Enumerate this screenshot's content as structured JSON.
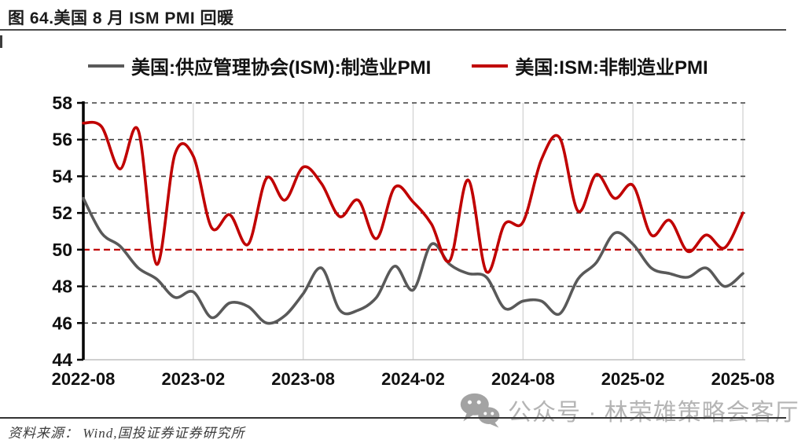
{
  "header": {
    "title": "图 64.美国 8 月 ISM PMI 回暖"
  },
  "legend": [
    {
      "label": "美国:供应管理协会(ISM):制造业PMI",
      "color": "#595959"
    },
    {
      "label": "美国:ISM:非制造业PMI",
      "color": "#c00000"
    }
  ],
  "chart_data": {
    "type": "line",
    "title": "图 64.美国 8 月 ISM PMI 回暖",
    "xlabel": "",
    "ylabel": "",
    "ylim": [
      44,
      58
    ],
    "yticks": [
      58,
      56,
      54,
      52,
      50,
      48,
      46,
      44
    ],
    "xticks": [
      "2022-08",
      "2023-02",
      "2023-08",
      "2024-02",
      "2024-08",
      "2025-02",
      "2025-08"
    ],
    "grid": "horizontal dashed dark, vertical light solid",
    "legend_position": "top",
    "refline": {
      "value": 50,
      "color": "#c00000",
      "style": "dashed"
    },
    "colors": {
      "hgrid": "#3f3f3f",
      "vgrid": "#d6d6d6",
      "baseline": "#bfbfbf",
      "axis": "#000000",
      "tick_label": "#101010"
    },
    "x": [
      "2022-08",
      "2022-09",
      "2022-10",
      "2022-11",
      "2022-12",
      "2023-01",
      "2023-02",
      "2023-03",
      "2023-04",
      "2023-05",
      "2023-06",
      "2023-07",
      "2023-08",
      "2023-09",
      "2023-10",
      "2023-11",
      "2023-12",
      "2024-01",
      "2024-02",
      "2024-03",
      "2024-04",
      "2024-05",
      "2024-06",
      "2024-07",
      "2024-08",
      "2024-09",
      "2024-10",
      "2024-11",
      "2024-12",
      "2025-01",
      "2025-02",
      "2025-03",
      "2025-04",
      "2025-05",
      "2025-06",
      "2025-07",
      "2025-08"
    ],
    "series": [
      {
        "name": "美国:供应管理协会(ISM):制造业PMI",
        "key": "manufacturing-pmi",
        "color": "#595959",
        "values": [
          52.8,
          50.9,
          50.2,
          49.0,
          48.4,
          47.4,
          47.7,
          46.3,
          47.1,
          46.9,
          46.0,
          46.4,
          47.6,
          49.0,
          46.7,
          46.7,
          47.4,
          49.1,
          47.8,
          50.3,
          49.2,
          48.7,
          48.5,
          46.8,
          47.2,
          47.2,
          46.5,
          48.4,
          49.3,
          50.9,
          50.3,
          49.0,
          48.7,
          48.5,
          49.0,
          48.0,
          48.7
        ]
      },
      {
        "name": "美国:ISM:非制造业PMI",
        "key": "services-pmi",
        "color": "#c00000",
        "values": [
          56.9,
          56.7,
          54.4,
          56.5,
          49.2,
          55.2,
          55.1,
          51.2,
          51.9,
          50.3,
          53.9,
          52.7,
          54.5,
          53.6,
          51.8,
          52.7,
          50.6,
          53.4,
          52.6,
          51.4,
          49.4,
          53.8,
          48.8,
          51.4,
          51.5,
          54.9,
          56.1,
          52.1,
          54.1,
          52.8,
          53.5,
          50.8,
          51.6,
          49.9,
          50.8,
          50.1,
          52.0
        ]
      }
    ]
  },
  "watermark": {
    "icon": "wechat-icon",
    "text": "公众号 · 林荣雄策略会客厅"
  },
  "footer": {
    "source": "资料来源： Wind,国投证券证券研究所"
  }
}
